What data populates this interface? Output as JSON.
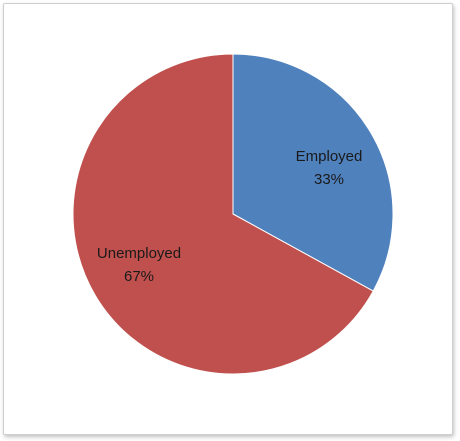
{
  "chart_data": {
    "type": "pie",
    "title": "",
    "categories": [
      "Employed",
      "Unemployed"
    ],
    "values": [
      33,
      67
    ],
    "percent_labels": [
      "33%",
      "67%"
    ],
    "colors": [
      "#4f81bd",
      "#c0504d"
    ],
    "legend": "none",
    "start_angle_deg": 0,
    "direction": "clockwise"
  }
}
